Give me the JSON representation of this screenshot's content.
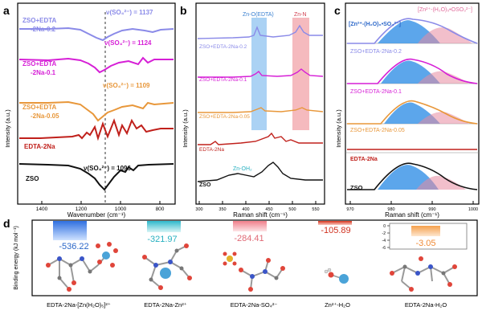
{
  "colors": {
    "zso": "#111111",
    "edta": "#c0201b",
    "s005": "#e8973a",
    "s01": "#d61fd6",
    "s02": "#8a8ae8",
    "znedta_band": "#8fc3f0",
    "znn_band": "#f1a3a8",
    "fill_blue": "#3f97e8",
    "fill_pink": "#e88aa0",
    "bar_blue": "#3a7de0",
    "bar_cyan": "#3bbfcf",
    "bar_pink": "#f08a92",
    "bar_red": "#d63a2a",
    "bar_orange": "#f39a4a",
    "value_blue": "#2a66c8",
    "value_cyan": "#28b0c0",
    "value_pink": "#e06a76",
    "value_red": "#d0301e",
    "value_orange": "#f08a36"
  },
  "panel_a": {
    "letter": "a",
    "ylabel": "Intensity (a.u.)",
    "xlabel": "Wavenumber (cm⁻¹)",
    "xticks": [
      "1400",
      "1200",
      "1000",
      "800"
    ],
    "traces": [
      {
        "label": "ZSO",
        "peak": "ν(SO₄²⁻) = 1096"
      },
      {
        "label": "EDTA-2Na",
        "peak": ""
      },
      {
        "label": "ZSO+EDTA-2Na-0.05",
        "label_lines": [
          "ZSO+EDTA",
          "-2Na-0.05"
        ],
        "peak": "ν(SO₄²⁻) = 1109"
      },
      {
        "label": "ZSO+EDTA-2Na-0.1",
        "label_lines": [
          "ZSO+EDTA",
          "-2Na-0.1"
        ],
        "peak": "ν(SO₄²⁻) = 1124"
      },
      {
        "label": "ZSO+EDTA-2Na-0.2",
        "label_lines": [
          "ZSO+EDTA",
          "-2Na-0.2"
        ],
        "peak": "ν(SO₄²⁻) = 1137"
      }
    ]
  },
  "panel_b": {
    "letter": "b",
    "ylabel": "Intensity (a.u.)",
    "xlabel": "Raman shift (cm⁻¹)",
    "xticks": [
      "300",
      "350",
      "400",
      "450",
      "500",
      "550"
    ],
    "band1": "Zn-O(EDTA)",
    "band2": "Zn-N",
    "znoh": "Zn-OH₂",
    "traces": [
      "ZSO+EDTA-2Na-0.2",
      "ZSO+EDTA-2Na-0.1",
      "ZSO+EDTA-2Na-0.05",
      "EDTA-2Na",
      "ZSO"
    ]
  },
  "panel_c": {
    "letter": "c",
    "ylabel": "Intensity (a.u.)",
    "xlabel": "Raman shift (cm⁻¹)",
    "xticks": [
      "970",
      "980",
      "990",
      "1000"
    ],
    "legend1": "[Zn²⁺-(H₂O)₆•SO₄²⁻]",
    "legend2": "[Zn²⁺-(H₂O)₅•OSO₃²⁻]",
    "traces": [
      "ZSO+EDTA-2Na-0.2",
      "ZSO+EDTA-2Na-0.1",
      "ZSO+EDTA-2Na-0.05",
      "EDTA-2Na",
      "ZSO"
    ]
  },
  "panel_d": {
    "letter": "d",
    "ylabel": "Binding energy (kJ mol⁻¹)",
    "yticks": [
      "0",
      "-2",
      "-4",
      "-6"
    ],
    "items": [
      {
        "name": "EDTA-2Na-[Zn(H₂O)₅]²⁺",
        "value": -536.22,
        "label": "-536.22"
      },
      {
        "name": "EDTA-2Na-Zn²⁺",
        "value": -321.97,
        "label": "-321.97"
      },
      {
        "name": "EDTA-2Na-SO₄²⁻",
        "value": -284.41,
        "label": "-284.41"
      },
      {
        "name": "Zn²⁺-H₂O",
        "value": -105.89,
        "label": "-105.89"
      },
      {
        "name": "EDTA-2Na-H₂O",
        "value": -3.05,
        "label": "-3.05"
      }
    ]
  }
}
